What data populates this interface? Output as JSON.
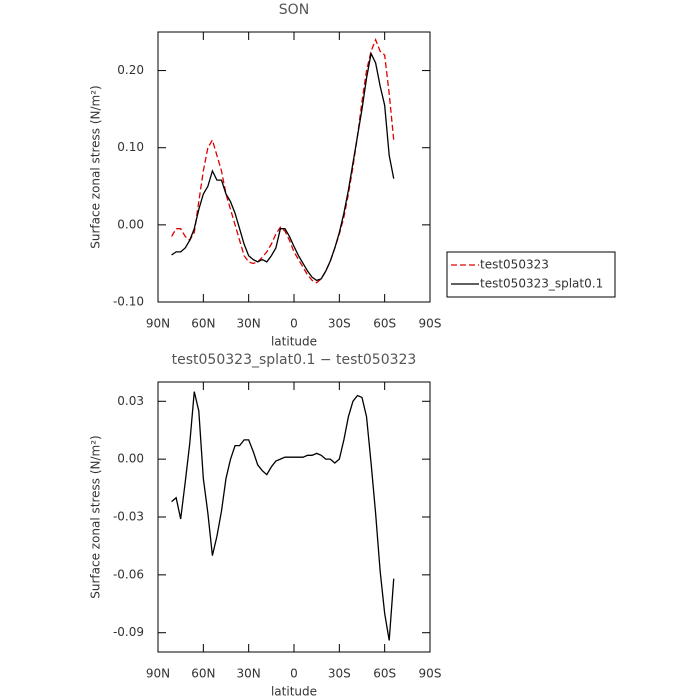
{
  "chart_data": [
    {
      "type": "line",
      "title": "SON",
      "xlabel": "latitude",
      "ylabel": "Surface zonal stress (N/m²)",
      "x": [
        81,
        78,
        75,
        72,
        69,
        66,
        63,
        60,
        57,
        54,
        51,
        48,
        45,
        42,
        39,
        36,
        33,
        30,
        27,
        24,
        21,
        18,
        15,
        12,
        9,
        6,
        3,
        0,
        -3,
        -6,
        -9,
        -12,
        -15,
        -18,
        -21,
        -24,
        -27,
        -30,
        -33,
        -36,
        -39,
        -42,
        -45,
        -48,
        -51,
        -54,
        -57,
        -60,
        -63,
        -66
      ],
      "xlim": [
        90,
        -90
      ],
      "xticks": [
        {
          "value": 90,
          "label": "90N"
        },
        {
          "value": 60,
          "label": "60N"
        },
        {
          "value": 30,
          "label": "30N"
        },
        0,
        {
          "value": -30,
          "label": "30S"
        },
        {
          "value": -60,
          "label": "60S"
        },
        {
          "value": -90,
          "label": "90S"
        }
      ],
      "ylim": [
        -0.1,
        0.25
      ],
      "yticks": [
        {
          "value": 0.2,
          "label": "0.20"
        },
        {
          "value": 0.1,
          "label": "0.10"
        },
        {
          "value": 0,
          "label": "0.00"
        },
        {
          "value": -0.1,
          "label": "-0.10"
        }
      ],
      "legend": "right",
      "series": [
        {
          "name": "test050323",
          "color": "#e00000",
          "line_style": "dashed",
          "values": [
            -0.015,
            -0.005,
            -0.005,
            -0.015,
            -0.02,
            -0.01,
            0.03,
            0.07,
            0.1,
            0.11,
            0.09,
            0.07,
            0.04,
            0.02,
            0.0,
            -0.02,
            -0.04,
            -0.048,
            -0.05,
            -0.048,
            -0.042,
            -0.035,
            -0.025,
            -0.012,
            -0.003,
            -0.008,
            -0.02,
            -0.035,
            -0.045,
            -0.055,
            -0.065,
            -0.072,
            -0.075,
            -0.07,
            -0.06,
            -0.047,
            -0.03,
            -0.012,
            0.01,
            0.04,
            0.075,
            0.115,
            0.16,
            0.2,
            0.225,
            0.24,
            0.225,
            0.22,
            0.17,
            0.11
          ]
        },
        {
          "name": "test050323_splat0.1",
          "color": "#000000",
          "line_style": "solid",
          "values": [
            -0.039,
            -0.035,
            -0.035,
            -0.03,
            -0.02,
            -0.005,
            0.02,
            0.04,
            0.05,
            0.07,
            0.058,
            0.058,
            0.04,
            0.03,
            0.015,
            -0.005,
            -0.025,
            -0.04,
            -0.045,
            -0.048,
            -0.045,
            -0.048,
            -0.04,
            -0.03,
            -0.005,
            -0.005,
            -0.015,
            -0.028,
            -0.04,
            -0.05,
            -0.06,
            -0.068,
            -0.072,
            -0.07,
            -0.06,
            -0.047,
            -0.03,
            -0.01,
            0.015,
            0.045,
            0.08,
            0.115,
            0.15,
            0.19,
            0.222,
            0.21,
            0.18,
            0.155,
            0.09,
            0.06
          ]
        }
      ]
    },
    {
      "type": "line",
      "title": "test050323_splat0.1 − test050323",
      "xlabel": "latitude",
      "ylabel": "Surface zonal stress (N/m²)",
      "x": [
        81,
        78,
        75,
        72,
        69,
        66,
        63,
        60,
        57,
        54,
        51,
        48,
        45,
        42,
        39,
        36,
        33,
        30,
        27,
        24,
        21,
        18,
        15,
        12,
        9,
        6,
        3,
        0,
        -3,
        -6,
        -9,
        -12,
        -15,
        -18,
        -21,
        -24,
        -27,
        -30,
        -33,
        -36,
        -39,
        -42,
        -45,
        -48,
        -51,
        -54,
        -57,
        -60,
        -63,
        -66
      ],
      "xlim": [
        90,
        -90
      ],
      "xticks": [
        {
          "value": 90,
          "label": "90N"
        },
        {
          "value": 60,
          "label": "60N"
        },
        {
          "value": 30,
          "label": "30N"
        },
        0,
        {
          "value": -30,
          "label": "30S"
        },
        {
          "value": -60,
          "label": "60S"
        },
        {
          "value": -90,
          "label": "90S"
        }
      ],
      "ylim": [
        -0.1,
        0.04
      ],
      "yticks": [
        {
          "value": 0.03,
          "label": "0.03"
        },
        {
          "value": 0,
          "label": "0.00"
        },
        {
          "value": -0.03,
          "label": "-0.03"
        },
        {
          "value": -0.06,
          "label": "-0.06"
        },
        {
          "value": -0.09,
          "label": "-0.09"
        }
      ],
      "series": [
        {
          "color": "#000000",
          "line_style": "solid",
          "values": [
            -0.022,
            -0.02,
            -0.031,
            -0.012,
            0.008,
            0.035,
            0.025,
            -0.01,
            -0.028,
            -0.05,
            -0.04,
            -0.027,
            -0.01,
            0.0,
            0.007,
            0.007,
            0.01,
            0.01,
            0.004,
            -0.003,
            -0.006,
            -0.008,
            -0.004,
            -0.001,
            0.0,
            0.001,
            0.001,
            0.001,
            0.001,
            0.001,
            0.002,
            0.002,
            0.003,
            0.002,
            0.0,
            0.0,
            -0.002,
            0.0,
            0.01,
            0.022,
            0.03,
            0.033,
            0.032,
            0.022,
            -0.002,
            -0.028,
            -0.058,
            -0.08,
            -0.094,
            -0.062
          ]
        }
      ]
    }
  ]
}
